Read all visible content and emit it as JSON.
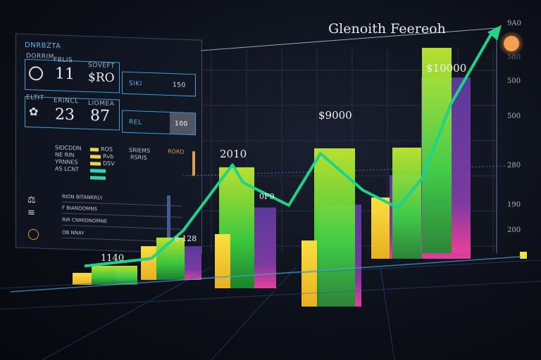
{
  "panel": {
    "heading": "DNRBZTA",
    "card1": {
      "label_a": "DORRIM",
      "label_b": "FBLIS",
      "value": "11",
      "label_c": "SOVEFT",
      "value2": "$RO",
      "tag": "SIKI",
      "tag_value": "150"
    },
    "card2": {
      "label_a": "ELTIT",
      "label_b": "ERINCL",
      "value": "23",
      "label_c": "LIOMEA",
      "value2": "87",
      "tag": "REL",
      "tag_value": "100"
    },
    "legend": {
      "rows": [
        "SIDCDDN",
        "NE RIN",
        "YRNNES",
        "AS LCNT"
      ],
      "values": [
        "ROS",
        "Rvb",
        "DSV"
      ],
      "col_header": "SRIEMS",
      "col_sub": "RSRIS",
      "right_label": "RORD"
    },
    "list": [
      "RION BITANRRLY",
      "F BIANOOMNS",
      "RIR CNMIDNOMNE",
      "OB NNAY"
    ]
  },
  "chart_data": {
    "type": "bar",
    "title": "Glenoith Feereoh",
    "xlabel": "",
    "ylabel": "",
    "ylim": [
      0,
      1000
    ],
    "y_tick_labels": [
      "9A0",
      "580",
      "500",
      "500",
      "280",
      "190",
      "200"
    ],
    "data_labels": [
      "1140",
      "e-128",
      "2010",
      "0F9",
      "$9000",
      "$10000"
    ],
    "groups": [
      {
        "yellow": 47,
        "green": 75,
        "purple": 60
      },
      {
        "yellow": 133,
        "green": 167,
        "purple": 133
      },
      {
        "yellow": 214,
        "green": 478,
        "purple": 319
      },
      {
        "yellow": 261,
        "green": 625,
        "purple": 403
      },
      {
        "yellow": 242,
        "green": 439,
        "purple": 330
      },
      {
        "yellow": 0,
        "green": 811,
        "purple": 694
      }
    ],
    "trend_line": {
      "x": [
        0,
        2,
        3,
        5,
        6,
        7,
        8,
        9,
        10,
        11,
        12,
        13
      ],
      "y": [
        60,
        90,
        200,
        460,
        390,
        300,
        505,
        360,
        290,
        410,
        700,
        990
      ]
    },
    "grid": true,
    "colors": {
      "yellow": "#f3d21f",
      "green": "#5ee033",
      "purple": "#6a3fa0",
      "pink": "#e0409a",
      "trend": "#1fd48a",
      "marker": "#f4a050"
    }
  }
}
